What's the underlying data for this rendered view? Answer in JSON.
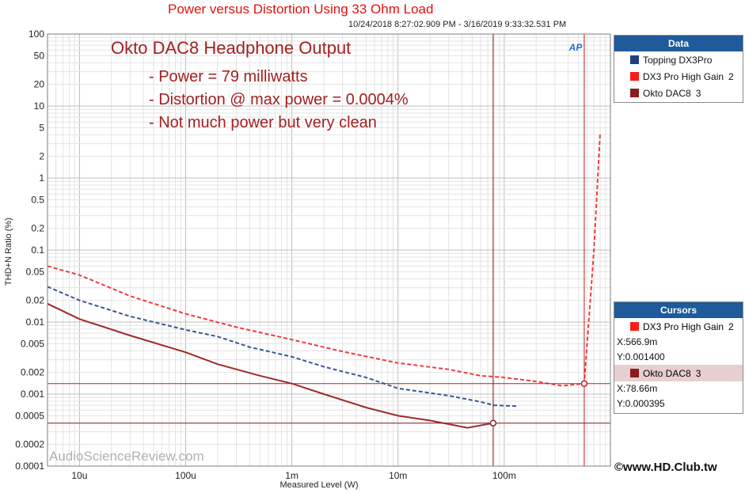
{
  "chart_data": {
    "type": "line",
    "title": "Power versus Distortion Using 33 Ohm Load",
    "subtitle": "10/24/2018 8:27:02.909 PM - 3/16/2019 9:33:32.531 PM",
    "xlabel": "Measured Level (W)",
    "ylabel": "THD+N Ratio (%)",
    "xscale": "log",
    "yscale": "log",
    "xlim": [
      5e-06,
      1.0
    ],
    "ylim": [
      0.0001,
      100
    ],
    "x_ticks": [
      "10u",
      "100u",
      "1m",
      "10m",
      "100m"
    ],
    "x_tick_values": [
      1e-05,
      0.0001,
      0.001,
      0.01,
      0.1
    ],
    "y_ticks": [
      "100",
      "50",
      "20",
      "10",
      "5",
      "2",
      "1",
      "0.5",
      "0.2",
      "0.1",
      "0.05",
      "0.02",
      "0.01",
      "0.005",
      "0.002",
      "0.001",
      "0.0005",
      "0.0002",
      "0.0001"
    ],
    "y_tick_values": [
      100,
      50,
      20,
      10,
      5,
      2,
      1,
      0.5,
      0.2,
      0.1,
      0.05,
      0.02,
      0.01,
      0.005,
      0.002,
      0.001,
      0.0005,
      0.0002,
      0.0001
    ],
    "grid": true,
    "legend": "right",
    "series": [
      {
        "name": "Topping DX3Pro",
        "color": "#3a5694",
        "style": "dashed",
        "points": [
          [
            5e-06,
            0.031
          ],
          [
            1e-05,
            0.02
          ],
          [
            3e-05,
            0.012
          ],
          [
            0.0001,
            0.0078
          ],
          [
            0.0002,
            0.0063
          ],
          [
            0.0004,
            0.0045
          ],
          [
            0.001,
            0.0033
          ],
          [
            0.002,
            0.0024
          ],
          [
            0.005,
            0.0017
          ],
          [
            0.01,
            0.0012
          ],
          [
            0.03,
            0.00095
          ],
          [
            0.06,
            0.00078
          ],
          [
            0.08,
            0.0007
          ],
          [
            0.13,
            0.00068
          ]
        ]
      },
      {
        "name": "DX3 Pro High Gain",
        "number": "2",
        "color": "#f03a3a",
        "style": "dashed",
        "points": [
          [
            5e-06,
            0.06
          ],
          [
            1e-05,
            0.045
          ],
          [
            3e-05,
            0.023
          ],
          [
            0.0001,
            0.013
          ],
          [
            0.0003,
            0.0085
          ],
          [
            0.001,
            0.0057
          ],
          [
            0.003,
            0.0039
          ],
          [
            0.01,
            0.0027
          ],
          [
            0.03,
            0.0022
          ],
          [
            0.06,
            0.0018
          ],
          [
            0.1,
            0.0017
          ],
          [
            0.2,
            0.0015
          ],
          [
            0.35,
            0.0013
          ],
          [
            0.567,
            0.0014
          ],
          [
            0.7,
            0.1
          ],
          [
            0.8,
            4.2
          ]
        ]
      },
      {
        "name": "Okto DAC8",
        "number": "3",
        "color": "#9e2a2a",
        "style": "solid",
        "points": [
          [
            5e-06,
            0.018
          ],
          [
            1e-05,
            0.011
          ],
          [
            3e-05,
            0.0065
          ],
          [
            0.0001,
            0.0038
          ],
          [
            0.0002,
            0.0026
          ],
          [
            0.0005,
            0.0018
          ],
          [
            0.001,
            0.0014
          ],
          [
            0.002,
            0.001
          ],
          [
            0.005,
            0.00065
          ],
          [
            0.01,
            0.0005
          ],
          [
            0.02,
            0.00043
          ],
          [
            0.045,
            0.00034
          ],
          [
            0.0787,
            0.000395
          ]
        ]
      }
    ],
    "cursors": [
      {
        "x": 0.5669,
        "y": 0.0014
      },
      {
        "x": 0.07866,
        "y": 0.000395
      }
    ]
  },
  "annotation": {
    "title": "Okto DAC8 Headphone Output",
    "lines": [
      "- Power = 79 milliwatts",
      "- Distortion @ max power = 0.0004%",
      "- Not much power but very clean"
    ]
  },
  "legend_panel": {
    "header": "Data",
    "items": [
      {
        "label": "Topping DX3Pro",
        "number": "",
        "color": "#1f3f80"
      },
      {
        "label": "DX3 Pro High Gain",
        "number": "2",
        "color": "#ff1a1a"
      },
      {
        "label": "Okto DAC8",
        "number": "3",
        "color": "#8a1c1c"
      }
    ]
  },
  "cursors_panel": {
    "header": "Cursors",
    "items": [
      {
        "label": "DX3 Pro High Gain",
        "number": "2",
        "color": "#ff1a1a",
        "x": "X:566.9m",
        "y": "Y:0.001400"
      },
      {
        "label": "Okto DAC8",
        "number": "3",
        "color": "#8a1c1c",
        "x": "X:78.66m",
        "y": "Y:0.000395"
      }
    ]
  },
  "ap_logo": "AP",
  "watermark": "AudioScienceReview.com",
  "credit": "©www.HD.Club.tw"
}
